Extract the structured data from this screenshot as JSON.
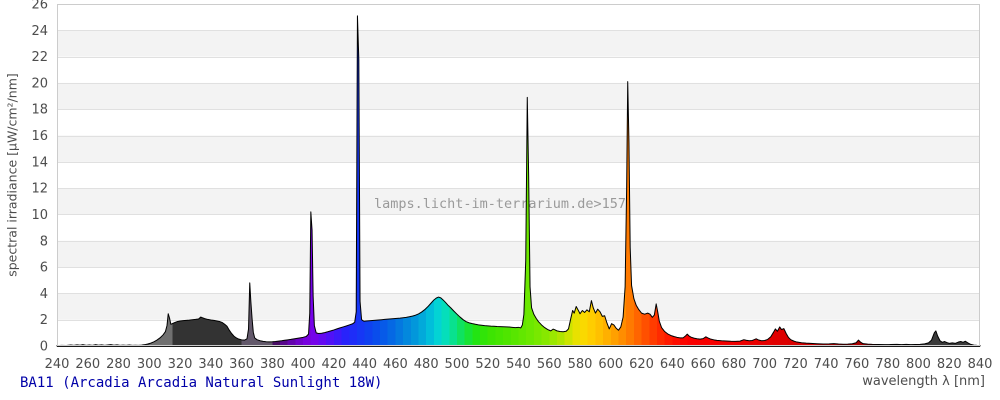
{
  "chart_title": "BA11 (Arcadia Arcadia Natural Sunlight 18W)",
  "watermark": "lamps.licht-im-terrarium.de>157",
  "x_axis": {
    "label": "wavelength λ [nm]",
    "ticks": [
      240,
      260,
      280,
      300,
      320,
      340,
      360,
      380,
      400,
      420,
      440,
      460,
      480,
      500,
      520,
      540,
      560,
      580,
      600,
      620,
      640,
      660,
      680,
      700,
      720,
      740,
      760,
      780,
      800,
      820,
      840
    ]
  },
  "y_axis": {
    "label": "spectral irradiance [µW/cm²/nm]",
    "ticks": [
      0,
      2,
      4,
      6,
      8,
      10,
      12,
      14,
      16,
      18,
      20,
      22,
      24,
      26
    ]
  },
  "style": {
    "title_color": "#0000a8",
    "watermark_color": "#9a9a9a",
    "tick_label_color": "#4d4d4d",
    "axis_label_color": "#4d4d4d",
    "grid_color": "#e0e0e0",
    "band_color": "#f3f3f3",
    "plot_border_color": "#cccccc",
    "outline_color": "#000000",
    "ir_color": "#3a3a3a",
    "ir_from": 800,
    "uv_bands": [
      {
        "from": 240,
        "to": 300,
        "color": "#4c4c4c"
      },
      {
        "from": 300,
        "to": 314,
        "color": "#707070"
      },
      {
        "from": 314,
        "to": 360,
        "color": "#333333"
      },
      {
        "from": 360,
        "to": 380,
        "color": "#63596b"
      }
    ],
    "visible_anchors": [
      [
        380,
        "#401050"
      ],
      [
        390,
        "#5e04a0"
      ],
      [
        400,
        "#7502d8"
      ],
      [
        406,
        "#7a02e6"
      ],
      [
        412,
        "#6609f0"
      ],
      [
        420,
        "#4814fa"
      ],
      [
        428,
        "#2624fb"
      ],
      [
        436,
        "#1834f6"
      ],
      [
        445,
        "#0b46ee"
      ],
      [
        455,
        "#0660e6"
      ],
      [
        465,
        "#0380de"
      ],
      [
        475,
        "#029eda"
      ],
      [
        483,
        "#01c0da"
      ],
      [
        490,
        "#04ddd0"
      ],
      [
        497,
        "#08e194"
      ],
      [
        505,
        "#12e348"
      ],
      [
        512,
        "#22e414"
      ],
      [
        520,
        "#38e402"
      ],
      [
        532,
        "#4ee500"
      ],
      [
        546,
        "#68e800"
      ],
      [
        558,
        "#88e800"
      ],
      [
        568,
        "#b2e500"
      ],
      [
        577,
        "#e6e200"
      ],
      [
        584,
        "#ffd600"
      ],
      [
        592,
        "#ffc200"
      ],
      [
        602,
        "#ffa200"
      ],
      [
        611,
        "#ff8000"
      ],
      [
        620,
        "#ff5a00"
      ],
      [
        630,
        "#ff3200"
      ],
      [
        640,
        "#ff1200"
      ],
      [
        650,
        "#fb0000"
      ],
      [
        670,
        "#f40000"
      ],
      [
        700,
        "#e60000"
      ],
      [
        730,
        "#d00000"
      ],
      [
        760,
        "#aa0000"
      ],
      [
        799,
        "#7e0000"
      ]
    ],
    "color_band_step_nm": 5
  },
  "chart_data": {
    "type": "area",
    "title": "BA11 (Arcadia Arcadia Natural Sunlight 18W)",
    "xlabel": "wavelength λ [nm]",
    "ylabel": "spectral irradiance [µW/cm²/nm]",
    "xlim": [
      240,
      840
    ],
    "ylim": [
      0,
      26
    ],
    "x_tick_step": 20,
    "y_tick_step": 2,
    "grid": "horizontal gridlines every 2 units, alternating shaded bands (2-4, 6-8, 10-12, 14-16, 18-20, 22-24)",
    "legend": "none",
    "series_name": "spectral irradiance",
    "main_peaks": [
      {
        "nm": 313,
        "value": 2.45
      },
      {
        "nm": 334,
        "value": 2.2
      },
      {
        "nm": 365,
        "value": 4.8
      },
      {
        "nm": 405,
        "value": 10.2
      },
      {
        "nm": 436,
        "value": 25.1
      },
      {
        "nm": 488,
        "value": 3.7
      },
      {
        "nm": 546,
        "value": 18.9
      },
      {
        "nm": 577,
        "value": 3.0
      },
      {
        "nm": 588,
        "value": 3.45
      },
      {
        "nm": 611,
        "value": 20.1
      },
      {
        "nm": 630,
        "value": 3.2
      },
      {
        "nm": 650,
        "value": 0.9
      },
      {
        "nm": 710,
        "value": 1.45
      },
      {
        "nm": 761,
        "value": 0.45
      },
      {
        "nm": 811,
        "value": 1.15
      }
    ],
    "points": [
      [
        240,
        0.03
      ],
      [
        243,
        0.05
      ],
      [
        246,
        0.04
      ],
      [
        249,
        0.08
      ],
      [
        251,
        0.05
      ],
      [
        253,
        0.09
      ],
      [
        255,
        0.06
      ],
      [
        257,
        0.1
      ],
      [
        259,
        0.05
      ],
      [
        261,
        0.08
      ],
      [
        263,
        0.05
      ],
      [
        265,
        0.1
      ],
      [
        267,
        0.06
      ],
      [
        269,
        0.09
      ],
      [
        271,
        0.05
      ],
      [
        273,
        0.08
      ],
      [
        275,
        0.1
      ],
      [
        277,
        0.06
      ],
      [
        279,
        0.09
      ],
      [
        281,
        0.05
      ],
      [
        283,
        0.07
      ],
      [
        285,
        0.05
      ],
      [
        287,
        0.08
      ],
      [
        289,
        0.05
      ],
      [
        291,
        0.06
      ],
      [
        293,
        0.05
      ],
      [
        295,
        0.07
      ],
      [
        297,
        0.1
      ],
      [
        299,
        0.15
      ],
      [
        301,
        0.22
      ],
      [
        303,
        0.32
      ],
      [
        305,
        0.45
      ],
      [
        307,
        0.62
      ],
      [
        309,
        0.85
      ],
      [
        310.5,
        1.1
      ],
      [
        311.5,
        1.55
      ],
      [
        312.3,
        2.45
      ],
      [
        313.2,
        2.1
      ],
      [
        314,
        1.65
      ],
      [
        315,
        1.7
      ],
      [
        316.5,
        1.78
      ],
      [
        318,
        1.85
      ],
      [
        320,
        1.9
      ],
      [
        322,
        1.93
      ],
      [
        324,
        1.95
      ],
      [
        326,
        1.97
      ],
      [
        328,
        2.0
      ],
      [
        330,
        2.02
      ],
      [
        332,
        2.05
      ],
      [
        333.5,
        2.2
      ],
      [
        334.5,
        2.15
      ],
      [
        336,
        2.08
      ],
      [
        338,
        2.02
      ],
      [
        340,
        1.98
      ],
      [
        342,
        1.95
      ],
      [
        344,
        1.9
      ],
      [
        346,
        1.85
      ],
      [
        347.5,
        1.78
      ],
      [
        349,
        1.65
      ],
      [
        350.5,
        1.5
      ],
      [
        352,
        1.2
      ],
      [
        353.5,
        0.95
      ],
      [
        355,
        0.75
      ],
      [
        356.5,
        0.62
      ],
      [
        358,
        0.53
      ],
      [
        360,
        0.47
      ],
      [
        362,
        0.45
      ],
      [
        363.5,
        0.55
      ],
      [
        364.5,
        1.3
      ],
      [
        365.3,
        4.8
      ],
      [
        366,
        3.4
      ],
      [
        366.8,
        2.1
      ],
      [
        367.6,
        1.05
      ],
      [
        368.5,
        0.62
      ],
      [
        370,
        0.48
      ],
      [
        372,
        0.4
      ],
      [
        374,
        0.35
      ],
      [
        376,
        0.32
      ],
      [
        378,
        0.31
      ],
      [
        380,
        0.32
      ],
      [
        382,
        0.34
      ],
      [
        384,
        0.37
      ],
      [
        386,
        0.4
      ],
      [
        388,
        0.44
      ],
      [
        390,
        0.47
      ],
      [
        392,
        0.5
      ],
      [
        394,
        0.54
      ],
      [
        396,
        0.58
      ],
      [
        398,
        0.62
      ],
      [
        400,
        0.66
      ],
      [
        402,
        0.72
      ],
      [
        403.5,
        0.9
      ],
      [
        404.3,
        2.5
      ],
      [
        405,
        10.2
      ],
      [
        405.8,
        8.8
      ],
      [
        406.5,
        3.8
      ],
      [
        407.3,
        1.55
      ],
      [
        408.5,
        1.0
      ],
      [
        410,
        0.95
      ],
      [
        412,
        0.97
      ],
      [
        414,
        1.02
      ],
      [
        416,
        1.08
      ],
      [
        418,
        1.15
      ],
      [
        420,
        1.22
      ],
      [
        422,
        1.3
      ],
      [
        424,
        1.38
      ],
      [
        426,
        1.45
      ],
      [
        428,
        1.52
      ],
      [
        430,
        1.6
      ],
      [
        432,
        1.68
      ],
      [
        433.5,
        1.8
      ],
      [
        434.5,
        2.6
      ],
      [
        435.3,
        25.1
      ],
      [
        436.2,
        21.8
      ],
      [
        437,
        3.4
      ],
      [
        438,
        2.0
      ],
      [
        439.5,
        1.88
      ],
      [
        441,
        1.9
      ],
      [
        443,
        1.92
      ],
      [
        445,
        1.94
      ],
      [
        447,
        1.96
      ],
      [
        449,
        1.98
      ],
      [
        451,
        2.0
      ],
      [
        453,
        2.02
      ],
      [
        455,
        2.04
      ],
      [
        457,
        2.06
      ],
      [
        459,
        2.08
      ],
      [
        461,
        2.1
      ],
      [
        463,
        2.12
      ],
      [
        465,
        2.15
      ],
      [
        467,
        2.18
      ],
      [
        469,
        2.22
      ],
      [
        471,
        2.27
      ],
      [
        473,
        2.34
      ],
      [
        475,
        2.44
      ],
      [
        477,
        2.58
      ],
      [
        479,
        2.76
      ],
      [
        481,
        2.98
      ],
      [
        483,
        3.24
      ],
      [
        485,
        3.5
      ],
      [
        486.5,
        3.64
      ],
      [
        488,
        3.72
      ],
      [
        489.5,
        3.66
      ],
      [
        491,
        3.5
      ],
      [
        492.5,
        3.32
      ],
      [
        494,
        3.12
      ],
      [
        496,
        2.9
      ],
      [
        498,
        2.65
      ],
      [
        500,
        2.42
      ],
      [
        502,
        2.2
      ],
      [
        504,
        2.0
      ],
      [
        506,
        1.85
      ],
      [
        508,
        1.76
      ],
      [
        510,
        1.7
      ],
      [
        512,
        1.65
      ],
      [
        514,
        1.61
      ],
      [
        516,
        1.58
      ],
      [
        518,
        1.55
      ],
      [
        520,
        1.53
      ],
      [
        522,
        1.51
      ],
      [
        524,
        1.5
      ],
      [
        526,
        1.48
      ],
      [
        528,
        1.47
      ],
      [
        530,
        1.46
      ],
      [
        532,
        1.45
      ],
      [
        534,
        1.44
      ],
      [
        536,
        1.42
      ],
      [
        538,
        1.4
      ],
      [
        540,
        1.42
      ],
      [
        541.5,
        1.38
      ],
      [
        542.5,
        1.6
      ],
      [
        543.5,
        2.4
      ],
      [
        544.7,
        6.5
      ],
      [
        545.7,
        18.9
      ],
      [
        546.6,
        13.0
      ],
      [
        547.5,
        4.5
      ],
      [
        548.5,
        2.9
      ],
      [
        550,
        2.4
      ],
      [
        551.5,
        2.1
      ],
      [
        553,
        1.85
      ],
      [
        555,
        1.6
      ],
      [
        557,
        1.4
      ],
      [
        559,
        1.25
      ],
      [
        561,
        1.15
      ],
      [
        562.5,
        1.28
      ],
      [
        563.5,
        1.24
      ],
      [
        565,
        1.15
      ],
      [
        567,
        1.1
      ],
      [
        569,
        1.08
      ],
      [
        571,
        1.12
      ],
      [
        572.5,
        1.3
      ],
      [
        574,
        2.1
      ],
      [
        575.2,
        2.7
      ],
      [
        576.2,
        2.5
      ],
      [
        577.5,
        3.0
      ],
      [
        578.7,
        2.75
      ],
      [
        580,
        2.45
      ],
      [
        581.5,
        2.7
      ],
      [
        583,
        2.55
      ],
      [
        584.5,
        2.75
      ],
      [
        586,
        2.6
      ],
      [
        587.4,
        3.45
      ],
      [
        588.6,
        2.9
      ],
      [
        590,
        2.5
      ],
      [
        591.5,
        2.8
      ],
      [
        593,
        2.6
      ],
      [
        594.5,
        2.25
      ],
      [
        596,
        2.3
      ],
      [
        597.5,
        1.75
      ],
      [
        599,
        1.3
      ],
      [
        600.5,
        1.7
      ],
      [
        602,
        1.6
      ],
      [
        603.5,
        1.35
      ],
      [
        605,
        1.2
      ],
      [
        606.5,
        1.45
      ],
      [
        608,
        2.2
      ],
      [
        609.3,
        4.5
      ],
      [
        610.3,
        12.0
      ],
      [
        611,
        20.1
      ],
      [
        611.8,
        15.5
      ],
      [
        612.6,
        7.5
      ],
      [
        613.5,
        4.6
      ],
      [
        615,
        3.6
      ],
      [
        616.5,
        3.1
      ],
      [
        618,
        2.8
      ],
      [
        620,
        2.5
      ],
      [
        622,
        2.42
      ],
      [
        624,
        2.5
      ],
      [
        625.5,
        2.42
      ],
      [
        627,
        2.18
      ],
      [
        628.3,
        2.35
      ],
      [
        629.5,
        3.2
      ],
      [
        630.5,
        2.6
      ],
      [
        631.5,
        1.9
      ],
      [
        633,
        1.4
      ],
      [
        635,
        1.1
      ],
      [
        637,
        0.92
      ],
      [
        639,
        0.8
      ],
      [
        641,
        0.72
      ],
      [
        643,
        0.66
      ],
      [
        645,
        0.62
      ],
      [
        647,
        0.62
      ],
      [
        648.7,
        0.78
      ],
      [
        649.7,
        0.9
      ],
      [
        650.7,
        0.78
      ],
      [
        652,
        0.68
      ],
      [
        654,
        0.6
      ],
      [
        656,
        0.55
      ],
      [
        658,
        0.52
      ],
      [
        660,
        0.56
      ],
      [
        661.8,
        0.7
      ],
      [
        663,
        0.62
      ],
      [
        665,
        0.52
      ],
      [
        667,
        0.47
      ],
      [
        669,
        0.43
      ],
      [
        672,
        0.4
      ],
      [
        675,
        0.38
      ],
      [
        678,
        0.36
      ],
      [
        681,
        0.35
      ],
      [
        684,
        0.37
      ],
      [
        686.5,
        0.48
      ],
      [
        688,
        0.44
      ],
      [
        690,
        0.4
      ],
      [
        692,
        0.42
      ],
      [
        694.5,
        0.55
      ],
      [
        696,
        0.46
      ],
      [
        698,
        0.4
      ],
      [
        700,
        0.42
      ],
      [
        702,
        0.5
      ],
      [
        704,
        0.7
      ],
      [
        705.8,
        1.05
      ],
      [
        707,
        1.3
      ],
      [
        708.3,
        1.12
      ],
      [
        709.8,
        1.45
      ],
      [
        711,
        1.25
      ],
      [
        712.5,
        1.32
      ],
      [
        714,
        0.95
      ],
      [
        715.5,
        0.65
      ],
      [
        717,
        0.48
      ],
      [
        719,
        0.37
      ],
      [
        721,
        0.3
      ],
      [
        724,
        0.25
      ],
      [
        727,
        0.22
      ],
      [
        730,
        0.2
      ],
      [
        734,
        0.17
      ],
      [
        738,
        0.15
      ],
      [
        742,
        0.16
      ],
      [
        745,
        0.18
      ],
      [
        748,
        0.15
      ],
      [
        751,
        0.13
      ],
      [
        754,
        0.14
      ],
      [
        757,
        0.17
      ],
      [
        759.5,
        0.25
      ],
      [
        761,
        0.45
      ],
      [
        762.5,
        0.28
      ],
      [
        764,
        0.18
      ],
      [
        767,
        0.14
      ],
      [
        770,
        0.12
      ],
      [
        774,
        0.11
      ],
      [
        778,
        0.1
      ],
      [
        782,
        0.11
      ],
      [
        786,
        0.12
      ],
      [
        789,
        0.1
      ],
      [
        792,
        0.12
      ],
      [
        795,
        0.1
      ],
      [
        798,
        0.11
      ],
      [
        801,
        0.12
      ],
      [
        804,
        0.16
      ],
      [
        806.5,
        0.24
      ],
      [
        808.5,
        0.45
      ],
      [
        810.3,
        1.0
      ],
      [
        811.3,
        1.15
      ],
      [
        812.5,
        0.75
      ],
      [
        814,
        0.4
      ],
      [
        815.5,
        0.28
      ],
      [
        817,
        0.34
      ],
      [
        818.5,
        0.26
      ],
      [
        820,
        0.2
      ],
      [
        822,
        0.24
      ],
      [
        824,
        0.2
      ],
      [
        826,
        0.3
      ],
      [
        827.5,
        0.34
      ],
      [
        829,
        0.28
      ],
      [
        830.5,
        0.36
      ],
      [
        832,
        0.24
      ],
      [
        834,
        0.12
      ],
      [
        836,
        0.07
      ],
      [
        838,
        0.05
      ],
      [
        840,
        0.04
      ]
    ]
  }
}
